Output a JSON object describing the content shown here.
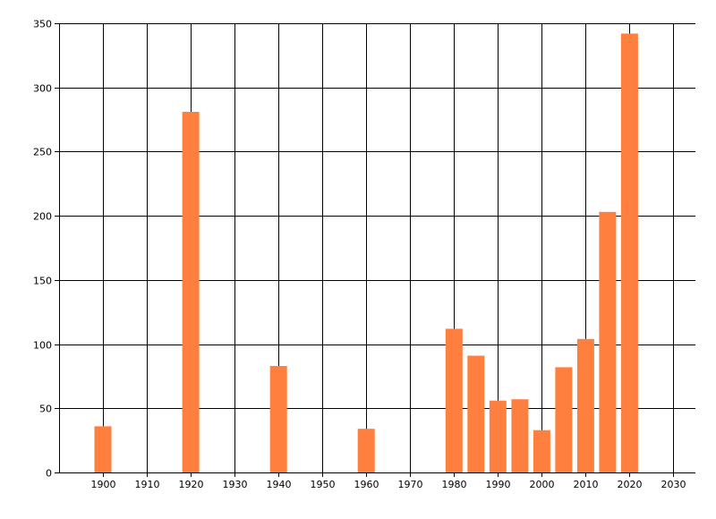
{
  "chart_data": {
    "type": "bar",
    "title": "",
    "xlabel": "",
    "ylabel": "",
    "x": [
      1900,
      1920,
      1940,
      1960,
      1980,
      1985,
      1990,
      1995,
      2000,
      2005,
      2010,
      2015,
      2020
    ],
    "values": [
      36,
      281,
      83,
      34,
      112,
      91,
      56,
      57,
      33,
      82,
      104,
      203,
      342
    ],
    "xlim": [
      1890,
      2035
    ],
    "ylim": [
      0,
      350
    ],
    "xticks": [
      1900,
      1910,
      1920,
      1930,
      1940,
      1950,
      1960,
      1970,
      1980,
      1990,
      2000,
      2010,
      2020,
      2030
    ],
    "yticks": [
      0,
      50,
      100,
      150,
      200,
      250,
      300,
      350
    ],
    "bar_color": "#ff7f3f",
    "grid": true
  }
}
